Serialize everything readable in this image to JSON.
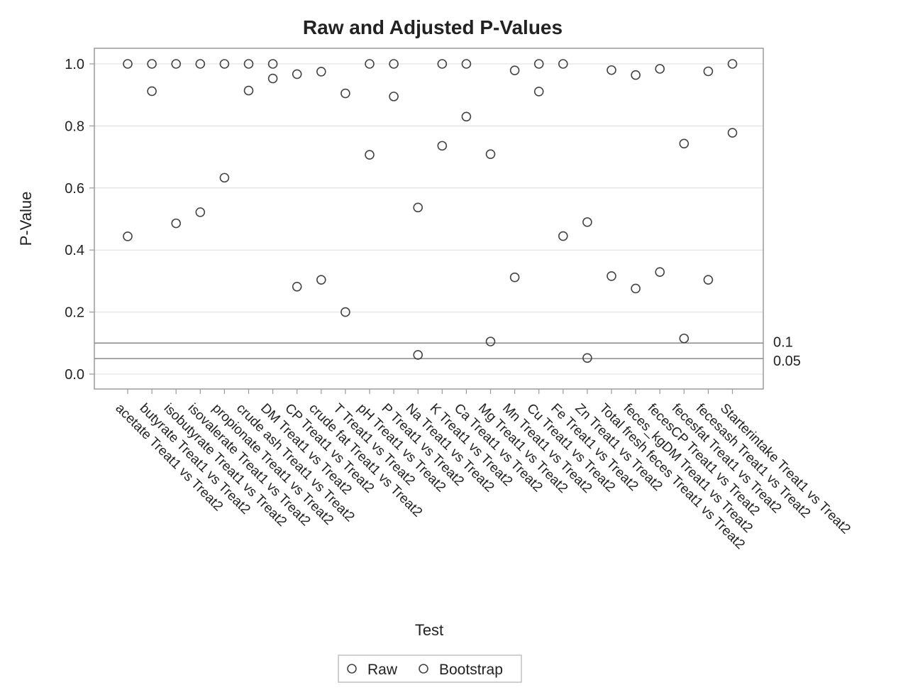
{
  "chart_data": {
    "type": "scatter",
    "title": "Raw and Adjusted P-Values",
    "xlabel": "Test",
    "ylabel": "P-Value",
    "ylim": [
      -0.05,
      1.05
    ],
    "yticks": [
      "0.0",
      "0.2",
      "0.4",
      "0.6",
      "0.8",
      "1.0"
    ],
    "ytick_values": [
      0.0,
      0.2,
      0.4,
      0.6,
      0.8,
      1.0
    ],
    "grid": true,
    "legend_position": "bottom-center",
    "categories": [
      "acetate Treat1 vs Treat2",
      "butyrate Treat1 vs Treat2",
      "isobutyrate Treat1 vs Treat2",
      "isovalerate Treat1 vs Treat2",
      "propionate Treat1 vs Treat2",
      "crude ash Treat1 vs Treat2",
      "DM Treat1 vs Treat2",
      "CP Treat1 vs Treat2",
      "crude fat Treat1 vs Treat2",
      "T Treat1 vs Treat2",
      "pH Treat1 vs Treat2",
      "P Treat1 vs Treat2",
      "Na Treat1 vs Treat2",
      "K Treat1 vs Treat2",
      "Ca Treat1 vs Treat2",
      "Mg Treat1 vs Treat2",
      "Mn Treat1 vs Treat2",
      "Cu Treat1 vs Treat2",
      "Fe Treat1 vs Treat2",
      "Zn Treat1 vs Treat2",
      "Total fresh feces Treat1 vs Treat2",
      "feces_kgDM Treat1 vs Treat2",
      "fecesCP Treat1 vs Treat2",
      "fecesfat Treat1 vs Treat2",
      "fecesash Treat1 vs Treat2",
      "Starterintake Treat1 vs Treat2"
    ],
    "series": [
      {
        "name": "Raw",
        "color": "#444444",
        "values": [
          0.444,
          0.912,
          0.486,
          0.522,
          0.633,
          0.914,
          0.953,
          0.282,
          0.304,
          0.2,
          0.707,
          0.895,
          0.062,
          0.736,
          0.83,
          0.709,
          0.312,
          0.911,
          0.445,
          0.052,
          0.316,
          0.276,
          0.329,
          0.115,
          0.304,
          0.778
        ]
      },
      {
        "name": "Bootstrap",
        "color": "#444444",
        "values": [
          1.0,
          1.0,
          1.0,
          1.0,
          1.0,
          1.0,
          1.0,
          0.967,
          0.975,
          0.905,
          1.0,
          1.0,
          0.537,
          1.0,
          1.0,
          0.105,
          0.979,
          1.0,
          1.0,
          0.49,
          0.98,
          0.964,
          0.984,
          0.743,
          0.976,
          1.0
        ]
      }
    ],
    "reference_lines": [
      {
        "value": 0.1,
        "label": "0.1"
      },
      {
        "value": 0.05,
        "label": "0.05"
      }
    ]
  }
}
